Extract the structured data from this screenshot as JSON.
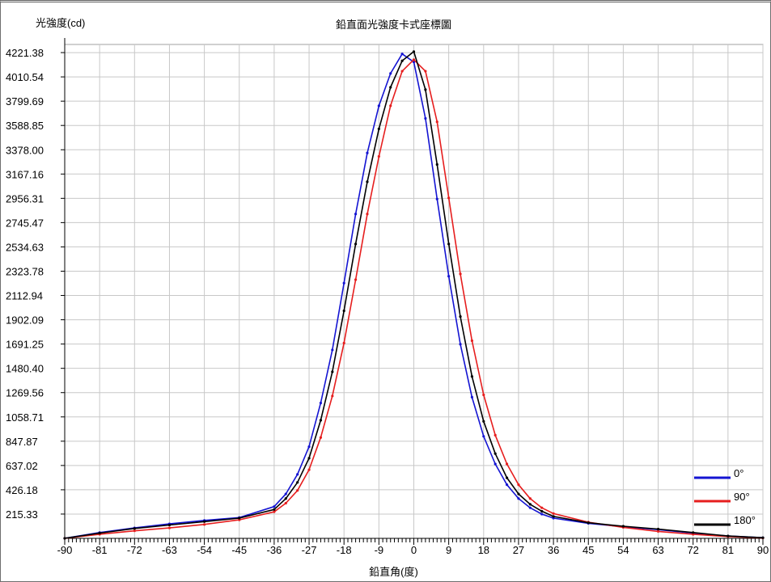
{
  "chart_data": {
    "type": "line",
    "title": "鉛直面光強度卡式座標圖",
    "ylabel": "光強度(cd)",
    "xlabel": "鉛直角(度)",
    "xlim": [
      -90,
      90
    ],
    "ylim": [
      4.49,
      4292
    ],
    "x_ticks": [
      "-90",
      "-81",
      "-72",
      "-63",
      "-54",
      "-45",
      "-36",
      "-27",
      "-18",
      "-9",
      "0",
      "9",
      "18",
      "27",
      "36",
      "45",
      "54",
      "63",
      "72",
      "81",
      "90"
    ],
    "y_ticks": [
      "4221.38",
      "4010.54",
      "3799.69",
      "3588.85",
      "3378.00",
      "3167.16",
      "2956.31",
      "2745.47",
      "2534.63",
      "2323.78",
      "2112.94",
      "1902.09",
      "1691.25",
      "1480.40",
      "1269.56",
      "1058.71",
      "847.87",
      "637.02",
      "426.18",
      "215.33"
    ],
    "grid": true,
    "legend_position": "bottom-right",
    "series": [
      {
        "name": "0°",
        "color": "#1414d2",
        "x": [
          -90,
          -81,
          -72,
          -63,
          -54,
          -45,
          -36,
          -33,
          -30,
          -27,
          -24,
          -21,
          -18,
          -15,
          -12,
          -9,
          -6,
          -3,
          0,
          3,
          6,
          9,
          12,
          15,
          18,
          21,
          24,
          27,
          30,
          33,
          36,
          45,
          54,
          63,
          72,
          81,
          90
        ],
        "y": [
          5,
          55,
          95,
          130,
          160,
          185,
          280,
          390,
          560,
          800,
          1180,
          1640,
          2220,
          2820,
          3350,
          3760,
          4040,
          4210,
          4140,
          3650,
          2950,
          2280,
          1690,
          1230,
          890,
          650,
          470,
          350,
          270,
          215,
          180,
          135,
          105,
          80,
          50,
          25,
          10
        ]
      },
      {
        "name": "90°",
        "color": "#e61e1e",
        "x": [
          -90,
          -81,
          -72,
          -63,
          -54,
          -45,
          -36,
          -33,
          -30,
          -27,
          -24,
          -21,
          -18,
          -15,
          -12,
          -9,
          -6,
          -3,
          0,
          3,
          6,
          9,
          12,
          15,
          18,
          21,
          24,
          27,
          30,
          33,
          36,
          45,
          54,
          63,
          72,
          81,
          90
        ],
        "y": [
          5,
          40,
          70,
          95,
          125,
          165,
          235,
          310,
          420,
          600,
          880,
          1240,
          1700,
          2250,
          2820,
          3320,
          3760,
          4060,
          4160,
          4060,
          3620,
          2960,
          2300,
          1720,
          1250,
          900,
          650,
          470,
          350,
          270,
          220,
          145,
          100,
          65,
          40,
          20,
          8
        ]
      },
      {
        "name": "180°",
        "color": "#000000",
        "x": [
          -90,
          -81,
          -72,
          -63,
          -54,
          -45,
          -36,
          -33,
          -30,
          -27,
          -24,
          -21,
          -18,
          -15,
          -12,
          -9,
          -6,
          -3,
          0,
          3,
          6,
          9,
          12,
          15,
          18,
          21,
          24,
          27,
          30,
          33,
          36,
          45,
          54,
          63,
          72,
          81,
          90
        ],
        "y": [
          5,
          50,
          90,
          120,
          150,
          180,
          255,
          350,
          490,
          700,
          1030,
          1450,
          1980,
          2560,
          3100,
          3560,
          3920,
          4150,
          4230,
          3900,
          3250,
          2560,
          1930,
          1410,
          1020,
          740,
          530,
          390,
          300,
          240,
          195,
          140,
          110,
          85,
          55,
          25,
          10
        ]
      }
    ]
  }
}
